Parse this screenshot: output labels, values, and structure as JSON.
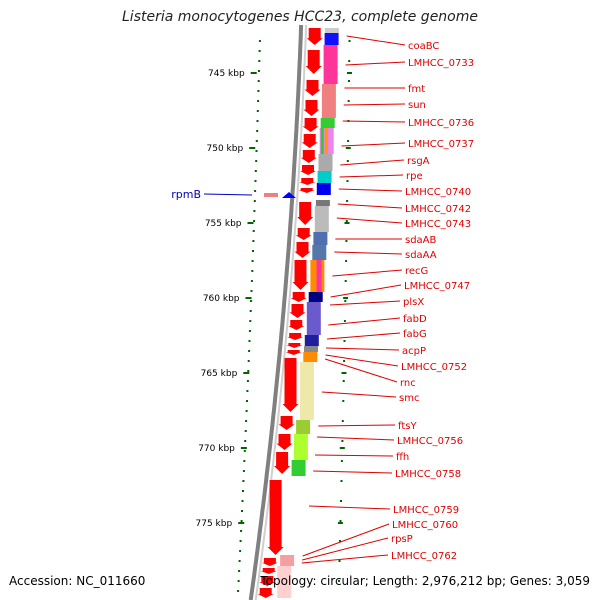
{
  "title": "Listeria monocytogenes HCC23, complete genome",
  "accession": "Accession: NC_011660",
  "topology": "Topology: circular; Length: 2,976,212 bp; Genes: 3,059",
  "colors": {
    "gene_arrow": "#ff0000",
    "label": "#e00000",
    "tick": "#006400",
    "backbone": "#808080",
    "special_label": "#0000c0"
  },
  "scale_labels": [
    "745 kbp",
    "750 kbp",
    "755 kbp",
    "760 kbp",
    "765 kbp",
    "770 kbp",
    "775 kbp"
  ],
  "special_gene": "rpmB",
  "genes": [
    "coaBC",
    "LMHCC_0733",
    "fmt",
    "sun",
    "LMHCC_0736",
    "LMHCC_0737",
    "rsgA",
    "rpe",
    "LMHCC_0740",
    "LMHCC_0742",
    "LMHCC_0743",
    "sdaAB",
    "sdaAA",
    "recG",
    "LMHCC_0747",
    "plsX",
    "fabD",
    "fabG",
    "acpP",
    "LMHCC_0752",
    "rnc",
    "smc",
    "ftsY",
    "LMHCC_0756",
    "ffh",
    "LMHCC_0758",
    "LMHCC_0759",
    "LMHCC_0760",
    "rpsP",
    "LMHCC_0762"
  ]
}
